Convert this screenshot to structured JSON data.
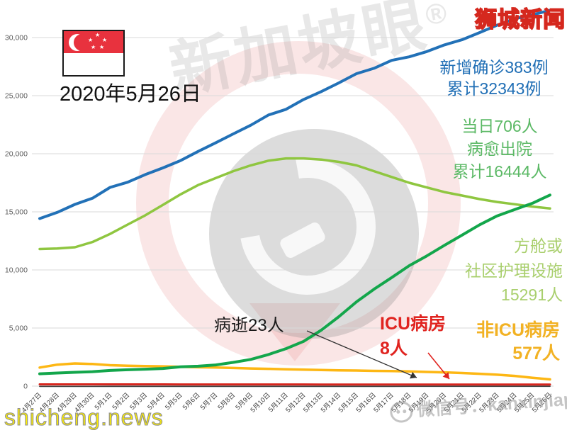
{
  "branding": {
    "site_logo": "狮城新闻",
    "site_url": "shicheng.news",
    "wechat_label": "微信号：kanxinjiapo",
    "watermark_text": "新加坡眼",
    "watermark_reg": "®",
    "logo_color": "#FFE400",
    "logo_outline": "#D5281E"
  },
  "date_label": "2020年5月26日",
  "flag": {
    "country": "Singapore",
    "red": "#E8323E"
  },
  "annotations": {
    "confirmed": {
      "line1": "新增确诊383例",
      "line2": "累计32343例",
      "color": "#1F6EB5"
    },
    "recovered": {
      "line1": "当日706人",
      "line2": "病愈出院",
      "line3": "累计16444人",
      "color": "#5CB966"
    },
    "facilities": {
      "line1": "方舱或",
      "line2": "社区护理设施",
      "line3": "15291人",
      "color": "#A9CF6D"
    },
    "deaths": {
      "text": "病逝23人",
      "color": "#1A1A1A"
    },
    "icu": {
      "line1": "ICU病房",
      "line2": "8人",
      "color": "#E02420"
    },
    "non_icu": {
      "line1": "非ICU病房",
      "line2": "577人",
      "color": "#F2B224"
    }
  },
  "chart_data": {
    "type": "line",
    "title": "",
    "xlabel": "",
    "ylabel": "",
    "ylim": [
      0,
      30000
    ],
    "ytick_step": 5000,
    "grid": "horizontal",
    "legend_position": "direct-labels",
    "x": [
      "4月27日",
      "4月28日",
      "4月29日",
      "4月30日",
      "5月1日",
      "5月2日",
      "5月3日",
      "5月4日",
      "5月5日",
      "5月6日",
      "5月7日",
      "5月8日",
      "5月9日",
      "5月10日",
      "5月11日",
      "5月12日",
      "5月13日",
      "5月14日",
      "5月15日",
      "5月16日",
      "5月17日",
      "5月18日",
      "5月19日",
      "5月20日",
      "5月21日",
      "5月22日",
      "5月23日",
      "5月24日",
      "5月25日",
      "5月26日"
    ],
    "series": [
      {
        "name": "累计确诊",
        "color": "#2271B7",
        "values": [
          14423,
          14951,
          15641,
          16169,
          17101,
          17548,
          18205,
          18778,
          19410,
          20198,
          20939,
          21707,
          22460,
          23336,
          23822,
          24671,
          25346,
          26098,
          26891,
          27356,
          28038,
          28343,
          28794,
          29364,
          29812,
          30426,
          31068,
          31616,
          31960,
          32343
        ]
      },
      {
        "name": "方舱或社区护理设施",
        "color": "#8FC640",
        "values": [
          11800,
          11850,
          11950,
          12400,
          13100,
          13900,
          14700,
          15600,
          16500,
          17300,
          17900,
          18500,
          19000,
          19400,
          19600,
          19600,
          19500,
          19300,
          19000,
          18500,
          18000,
          17500,
          17100,
          16700,
          16400,
          16100,
          15850,
          15650,
          15450,
          15291
        ]
      },
      {
        "name": "累计病愈出院",
        "color": "#13A64B",
        "values": [
          1060,
          1128,
          1188,
          1244,
          1347,
          1408,
          1457,
          1519,
          1658,
          1712,
          1824,
          2040,
          2296,
          2721,
          3225,
          3851,
          4809,
          5973,
          7248,
          8342,
          9340,
          10365,
          11207,
          12117,
          12995,
          13882,
          14650,
          15200,
          15738,
          16444
        ]
      },
      {
        "name": "非ICU病房",
        "color": "#FDB714",
        "values": [
          1600,
          1850,
          1950,
          1900,
          1800,
          1750,
          1720,
          1700,
          1660,
          1620,
          1600,
          1560,
          1520,
          1490,
          1450,
          1420,
          1390,
          1360,
          1340,
          1310,
          1290,
          1260,
          1220,
          1180,
          1130,
          1060,
          980,
          880,
          720,
          577
        ]
      },
      {
        "name": "ICU病房",
        "color": "#D7251D",
        "values": [
          21,
          20,
          20,
          19,
          19,
          18,
          17,
          16,
          15,
          14,
          13,
          12,
          11,
          11,
          10,
          10,
          9,
          9,
          9,
          8,
          8,
          8,
          8,
          8,
          8,
          8,
          8,
          8,
          8,
          8
        ]
      },
      {
        "name": "累计病逝",
        "color": "#404040",
        "values": [
          14,
          14,
          15,
          15,
          16,
          16,
          16,
          17,
          17,
          18,
          18,
          18,
          18,
          20,
          20,
          20,
          21,
          21,
          21,
          21,
          21,
          22,
          22,
          22,
          22,
          22,
          22,
          23,
          23,
          23
        ]
      }
    ]
  }
}
